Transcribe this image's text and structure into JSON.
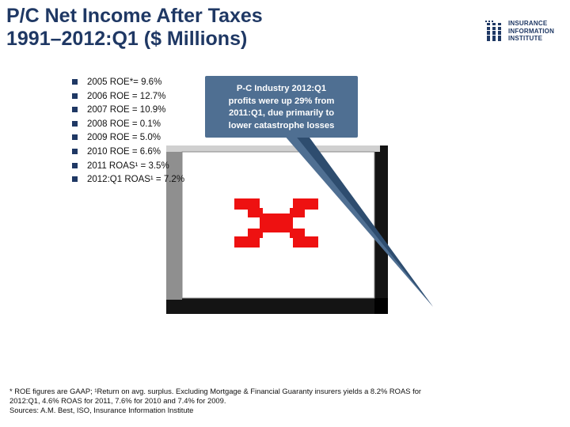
{
  "title": {
    "line1": "P/C Net Income After Taxes",
    "line2": "1991–2012:Q1 ($ Millions)"
  },
  "logo": {
    "line1": "INSURANCE",
    "line2": "INFORMATION",
    "line3": "INSTITUTE",
    "icon": "iii-logo-icon",
    "color": "#1f3864"
  },
  "bullets": [
    "2005 ROE*= 9.6%",
    "2006 ROE = 12.7%",
    "2007 ROE = 10.9%",
    "2008 ROE = 0.1%",
    "2009 ROE = 5.0%",
    "2010 ROE = 6.6%",
    "2011 ROAS¹ = 3.5%",
    "2012:Q1 ROAS¹ = 7.2%"
  ],
  "callout": {
    "line1": "P-C Industry 2012:Q1",
    "line2": "profits were up 29% from",
    "line3": "2011:Q1, due primarily to",
    "line4": "lower catastrophe losses",
    "color": "#4f6f92"
  },
  "chart_data": {
    "type": "bar",
    "rendered": false,
    "placeholder_icon": "missing-chart-icon",
    "placeholder_color": "#ee1111"
  },
  "footnote": {
    "line1": "* ROE figures are GAAP; ¹Return on avg. surplus.  Excluding Mortgage & Financial Guaranty insurers yields a 8.2% ROAS for",
    "line2": "2012:Q1, 4.6% ROAS for 2011, 7.6% for 2010 and 7.4% for 2009.",
    "line3": "Sources: A.M. Best, ISO, Insurance Information Institute"
  }
}
